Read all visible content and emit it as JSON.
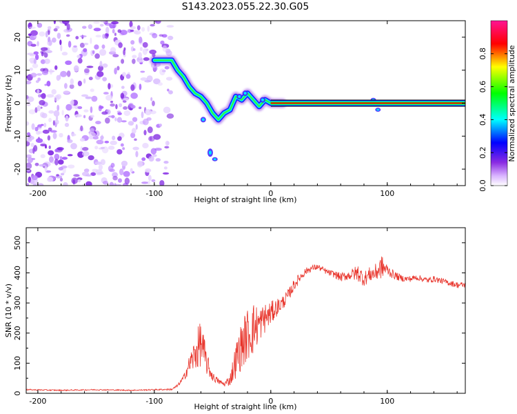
{
  "title": "S143.2023.055.22.30.G05",
  "chart_data": [
    {
      "type": "heatmap",
      "xlabel": "Height of straight line (km)",
      "ylabel": "Frequency (Hz)",
      "xlim": [
        -210,
        167
      ],
      "ylim": [
        -25,
        25
      ],
      "xticks": [
        -200,
        -100,
        0,
        100
      ],
      "yticks": [
        -20,
        -10,
        0,
        10,
        20
      ],
      "colorbar": {
        "label": "Normalized spectral amplitude",
        "range": [
          0,
          1
        ],
        "ticks": [
          "0.0",
          "0.2",
          "0.4",
          "0.6",
          "0.8"
        ],
        "colors": [
          "#ffffff",
          "#d9b3ff",
          "#8a2be2",
          "#0000ff",
          "#00ffff",
          "#00ff00",
          "#ffff00",
          "#ff0000",
          "#ff1493"
        ]
      },
      "ridge": [
        {
          "x": -100,
          "y": 13
        },
        {
          "x": -90,
          "y": 13
        },
        {
          "x": -85,
          "y": 13
        },
        {
          "x": -80,
          "y": 10
        },
        {
          "x": -75,
          "y": 8
        },
        {
          "x": -70,
          "y": 5
        },
        {
          "x": -65,
          "y": 3
        },
        {
          "x": -60,
          "y": 2
        },
        {
          "x": -55,
          "y": 0
        },
        {
          "x": -50,
          "y": -3
        },
        {
          "x": -45,
          "y": -5
        },
        {
          "x": -40,
          "y": -3
        },
        {
          "x": -35,
          "y": -2
        },
        {
          "x": -30,
          "y": 2
        },
        {
          "x": -25,
          "y": 1
        },
        {
          "x": -20,
          "y": 3
        },
        {
          "x": -15,
          "y": 1
        },
        {
          "x": -10,
          "y": -1
        },
        {
          "x": -5,
          "y": 1
        },
        {
          "x": 0,
          "y": 0
        },
        {
          "x": 10,
          "y": 0
        },
        {
          "x": 90,
          "y": 0
        },
        {
          "x": 167,
          "y": 0
        }
      ],
      "steady_line": {
        "from_x": 0,
        "to_x": 167,
        "y": 0
      }
    },
    {
      "type": "line",
      "xlabel": "Height of straight line (km)",
      "ylabel": "SNR (10 * v/v)",
      "xlim": [
        -210,
        167
      ],
      "ylim": [
        0,
        550
      ],
      "xticks": [
        -200,
        -100,
        0,
        100
      ],
      "yticks": [
        0,
        100,
        200,
        300,
        400,
        500
      ],
      "series": [
        {
          "color": "#e8332a",
          "x": [
            -210,
            -180,
            -150,
            -120,
            -100,
            -85,
            -80,
            -75,
            -70,
            -65,
            -60,
            -55,
            -50,
            -45,
            -40,
            -35,
            -30,
            -25,
            -20,
            -15,
            -10,
            -5,
            0,
            5,
            10,
            15,
            20,
            25,
            30,
            35,
            40,
            45,
            50,
            55,
            60,
            65,
            70,
            75,
            80,
            85,
            90,
            95,
            100,
            105,
            110,
            115,
            120,
            125,
            130,
            135,
            140,
            145,
            150,
            155,
            160,
            167
          ],
          "values": [
            12,
            10,
            12,
            10,
            12,
            13,
            25,
            50,
            95,
            130,
            170,
            100,
            55,
            40,
            30,
            45,
            110,
            160,
            195,
            215,
            230,
            250,
            265,
            285,
            300,
            325,
            360,
            385,
            405,
            415,
            420,
            410,
            400,
            395,
            385,
            390,
            395,
            400,
            380,
            395,
            400,
            420,
            410,
            395,
            385,
            380,
            380,
            385,
            380,
            375,
            380,
            375,
            370,
            365,
            360,
            360
          ],
          "noise": [
            2,
            2,
            2,
            2,
            2,
            3,
            5,
            10,
            30,
            60,
            80,
            40,
            15,
            10,
            8,
            20,
            60,
            80,
            90,
            90,
            60,
            50,
            40,
            30,
            25,
            20,
            20,
            15,
            12,
            10,
            10,
            10,
            10,
            12,
            15,
            15,
            20,
            30,
            25,
            25,
            30,
            40,
            20,
            15,
            12,
            10,
            10,
            10,
            10,
            10,
            10,
            10,
            10,
            10,
            10,
            10
          ]
        }
      ]
    }
  ]
}
